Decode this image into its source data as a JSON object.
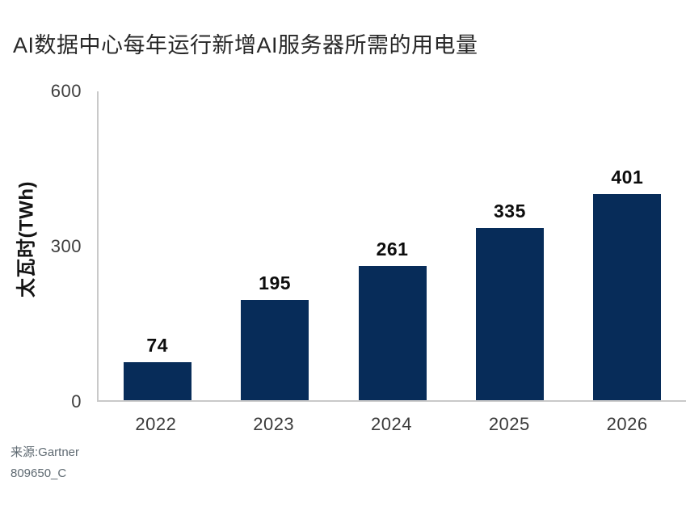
{
  "title": "AI数据中心每年运行新增AI服务器所需的用电量",
  "chart_data": {
    "type": "bar",
    "categories": [
      "2022",
      "2023",
      "2024",
      "2025",
      "2026"
    ],
    "values": [
      74,
      195,
      261,
      335,
      401
    ],
    "title": "AI数据中心每年运行新增AI服务器所需的用电量",
    "xlabel": "",
    "ylabel": "太瓦时(TWh)",
    "yticks": [
      "600",
      "300",
      "0"
    ],
    "ylim": [
      0,
      600
    ],
    "bar_color": "#072C59",
    "axis_color": "#c9c9c9",
    "grid": false,
    "data_labels": true,
    "legend": null
  },
  "source": {
    "line1": "来源:Gartner",
    "line2": "809650_C"
  }
}
